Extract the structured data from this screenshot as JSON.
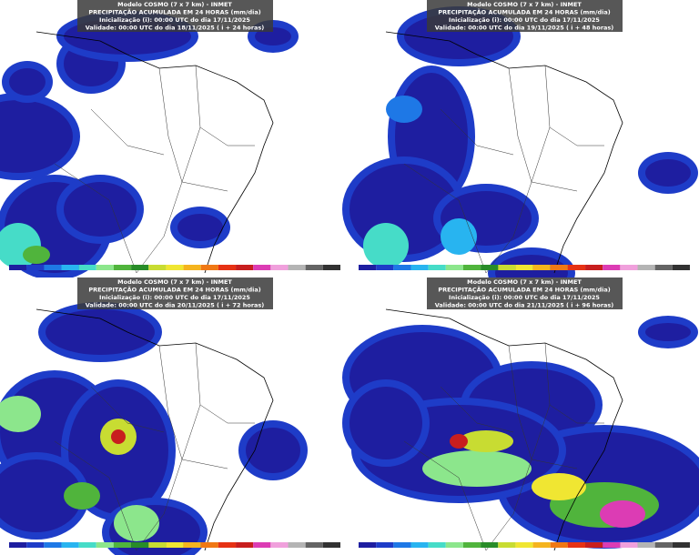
{
  "panels": [
    {
      "model": "Modelo COSMO (7 x 7 km) - INMET",
      "title": "PRECIPITAÇÃO ACUMULADA EM 24 HORAS (mm/dia)",
      "init": "Inicialização (i): 00:00 UTC do dia 17/11/2025",
      "validity": "Validade: 00:00 UTC do dia 18/11/2025 ( i + 24 horas)"
    },
    {
      "model": "Modelo COSMO (7 x 7 km) - INMET",
      "title": "PRECIPITAÇÃO ACUMULADA EM 24 HORAS (mm/dia)",
      "init": "Inicialização (i): 00:00 UTC do dia 17/11/2025",
      "validity": "Validade: 00:00 UTC do dia 19/11/2025 ( i + 48 horas)"
    },
    {
      "model": "Modelo COSMO (7 x 7 km) - INMET",
      "title": "PRECIPITAÇÃO ACUMULADA EM 24 HORAS (mm/dia)",
      "init": "Inicialização (i): 00:00 UTC do dia 17/11/2025",
      "validity": "Validade: 00:00 UTC do dia 20/11/2025 ( i + 72 horas)"
    },
    {
      "model": "Modelo COSMO (7 x 7 km) - INMET",
      "title": "PRECIPITAÇÃO ACUMULADA EM 24 HORAS (mm/dia)",
      "init": "Inicialização (i): 00:00 UTC do dia 17/11/2025",
      "validity": "Validade: 00:00 UTC do dia 21/11/2025 ( i + 96 horas)"
    }
  ]
}
